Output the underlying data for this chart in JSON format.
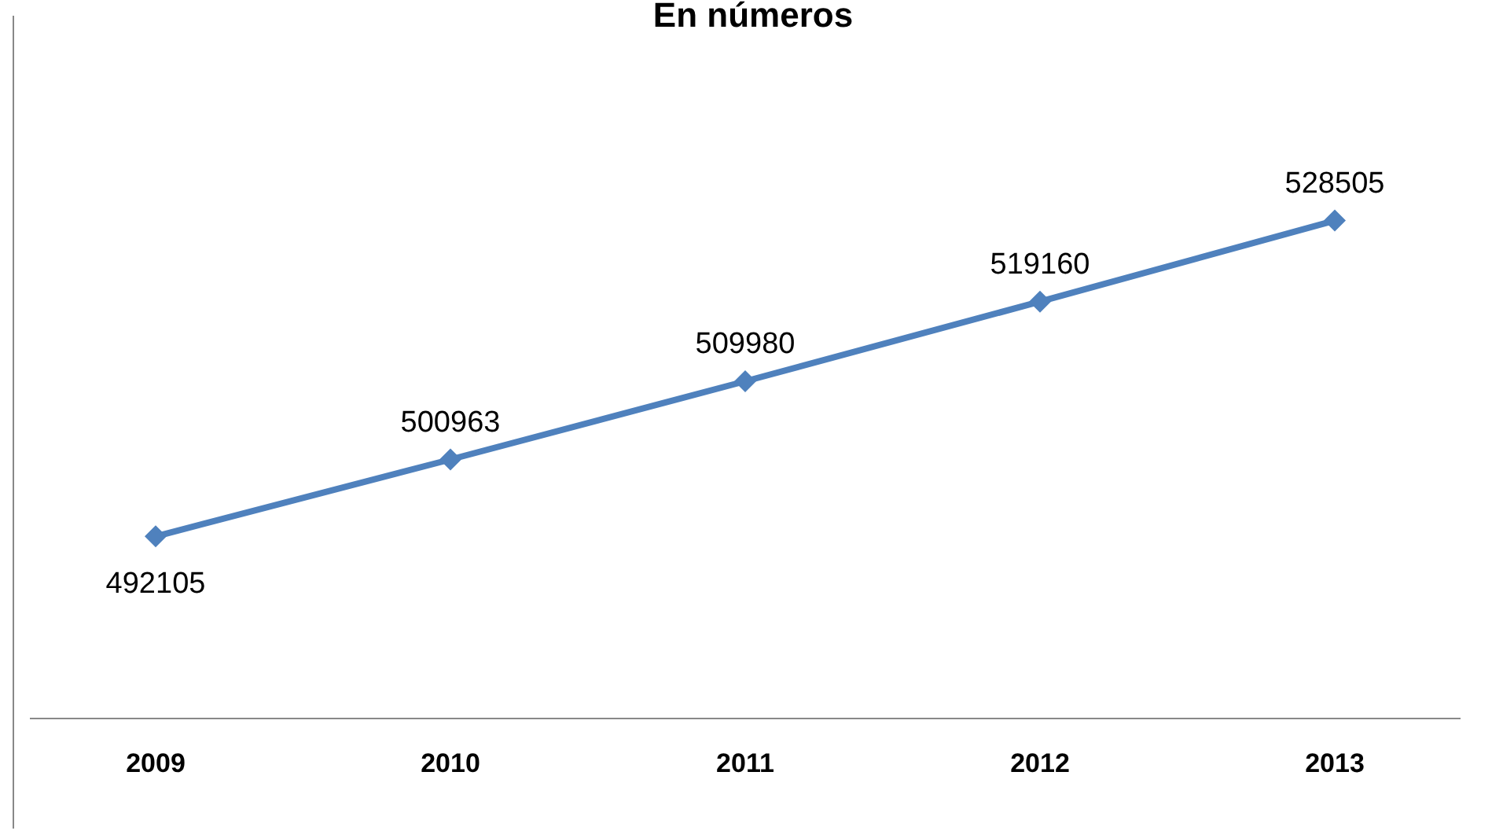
{
  "chart_data": {
    "type": "line",
    "title": "En números",
    "categories": [
      "2009",
      "2010",
      "2011",
      "2012",
      "2013"
    ],
    "series": [
      {
        "color": "#4f81bd",
        "values": [
          492105,
          500963,
          509980,
          519160,
          528505
        ]
      }
    ],
    "relative": false,
    "data_labels": true,
    "marker": "diamond",
    "line_style": "solid",
    "legend": false
  }
}
